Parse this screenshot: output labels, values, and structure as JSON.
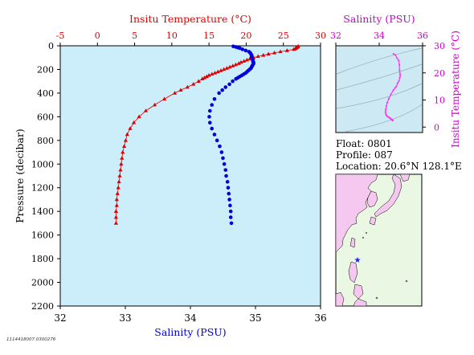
{
  "info": {
    "float_label": "Float:",
    "float_value": "0801",
    "profile_label": "Profile:",
    "profile_value": "087",
    "location_label": "Location:",
    "location_value": "20.6°N  128.1°E"
  },
  "footer": "1114418007.0300276",
  "colors": {
    "temperature": "#e00000",
    "salinity": "#0000dd",
    "ts_curve": "#ff33ff",
    "plot_bg": "#cbeefa",
    "ts_bg": "#cde9f3",
    "land": "#f5c8f0",
    "sea": "#eaf8e3",
    "float_marker": "#1a1aff"
  },
  "chart_data": [
    {
      "type": "scatter",
      "name": "profile",
      "top_axis": {
        "label": "Insitu Temperature (°C)",
        "range": [
          -5,
          30
        ],
        "ticks": [
          -5,
          0,
          5,
          10,
          15,
          20,
          25,
          30
        ]
      },
      "bottom_axis": {
        "label": "Salinity (PSU)",
        "range": [
          32,
          36
        ],
        "ticks": [
          32,
          33,
          34,
          35,
          36
        ]
      },
      "left_axis": {
        "label": "Pressure (decibar)",
        "range": [
          0,
          2200
        ],
        "inverted": true,
        "ticks": [
          0,
          200,
          400,
          600,
          800,
          1000,
          1200,
          1400,
          1600,
          1800,
          2000,
          2200
        ]
      },
      "grid": false,
      "series": [
        {
          "key": "temperature",
          "marker": "triangle",
          "axis": "top",
          "points": [
            [
              27.0,
              5
            ],
            [
              26.9,
              10
            ],
            [
              26.8,
              15
            ],
            [
              26.7,
              20
            ],
            [
              26.6,
              25
            ],
            [
              26.4,
              30
            ],
            [
              25.5,
              40
            ],
            [
              24.6,
              50
            ],
            [
              23.8,
              60
            ],
            [
              23.0,
              70
            ],
            [
              22.3,
              80
            ],
            [
              21.6,
              90
            ],
            [
              21.0,
              100
            ],
            [
              20.5,
              110
            ],
            [
              20.1,
              120
            ],
            [
              19.7,
              130
            ],
            [
              19.3,
              140
            ],
            [
              19.0,
              150
            ],
            [
              18.6,
              160
            ],
            [
              18.2,
              170
            ],
            [
              17.8,
              180
            ],
            [
              17.4,
              190
            ],
            [
              17.0,
              200
            ],
            [
              16.6,
              210
            ],
            [
              16.2,
              220
            ],
            [
              15.8,
              230
            ],
            [
              15.4,
              240
            ],
            [
              15.0,
              250
            ],
            [
              14.7,
              260
            ],
            [
              14.4,
              270
            ],
            [
              14.1,
              280
            ],
            [
              13.6,
              300
            ],
            [
              12.9,
              325
            ],
            [
              12.1,
              350
            ],
            [
              11.2,
              375
            ],
            [
              10.4,
              400
            ],
            [
              9.0,
              450
            ],
            [
              7.7,
              500
            ],
            [
              6.5,
              550
            ],
            [
              5.6,
              600
            ],
            [
              4.9,
              650
            ],
            [
              4.4,
              700
            ],
            [
              4.0,
              750
            ],
            [
              3.8,
              800
            ],
            [
              3.6,
              850
            ],
            [
              3.4,
              900
            ],
            [
              3.3,
              950
            ],
            [
              3.2,
              1000
            ],
            [
              3.1,
              1050
            ],
            [
              3.0,
              1100
            ],
            [
              2.9,
              1150
            ],
            [
              2.8,
              1200
            ],
            [
              2.7,
              1250
            ],
            [
              2.6,
              1300
            ],
            [
              2.6,
              1350
            ],
            [
              2.5,
              1400
            ],
            [
              2.5,
              1450
            ],
            [
              2.5,
              1500
            ]
          ]
        },
        {
          "key": "salinity",
          "marker": "circle",
          "axis": "bottom",
          "points": [
            [
              34.66,
              5
            ],
            [
              34.7,
              10
            ],
            [
              34.73,
              15
            ],
            [
              34.76,
              20
            ],
            [
              34.8,
              30
            ],
            [
              34.85,
              40
            ],
            [
              34.9,
              50
            ],
            [
              34.92,
              60
            ],
            [
              34.93,
              70
            ],
            [
              34.94,
              80
            ],
            [
              34.94,
              90
            ],
            [
              34.94,
              100
            ],
            [
              34.95,
              110
            ],
            [
              34.96,
              120
            ],
            [
              34.96,
              130
            ],
            [
              34.97,
              140
            ],
            [
              34.97,
              150
            ],
            [
              34.96,
              160
            ],
            [
              34.95,
              170
            ],
            [
              34.94,
              180
            ],
            [
              34.93,
              190
            ],
            [
              34.91,
              200
            ],
            [
              34.89,
              210
            ],
            [
              34.87,
              220
            ],
            [
              34.85,
              230
            ],
            [
              34.82,
              240
            ],
            [
              34.79,
              250
            ],
            [
              34.76,
              260
            ],
            [
              34.73,
              270
            ],
            [
              34.7,
              280
            ],
            [
              34.65,
              300
            ],
            [
              34.6,
              325
            ],
            [
              34.54,
              350
            ],
            [
              34.49,
              375
            ],
            [
              34.44,
              400
            ],
            [
              34.37,
              450
            ],
            [
              34.33,
              500
            ],
            [
              34.3,
              550
            ],
            [
              34.29,
              600
            ],
            [
              34.3,
              650
            ],
            [
              34.33,
              700
            ],
            [
              34.37,
              750
            ],
            [
              34.41,
              800
            ],
            [
              34.45,
              850
            ],
            [
              34.48,
              900
            ],
            [
              34.5,
              950
            ],
            [
              34.52,
              1000
            ],
            [
              34.54,
              1050
            ],
            [
              34.55,
              1100
            ],
            [
              34.57,
              1150
            ],
            [
              34.58,
              1200
            ],
            [
              34.59,
              1250
            ],
            [
              34.6,
              1300
            ],
            [
              34.61,
              1350
            ],
            [
              34.62,
              1400
            ],
            [
              34.62,
              1450
            ],
            [
              34.63,
              1500
            ]
          ]
        }
      ]
    },
    {
      "type": "scatter",
      "name": "ts-diagram",
      "top_axis": {
        "label": "Salinity (PSU)",
        "range": [
          32,
          36
        ],
        "ticks": [
          32,
          34,
          36
        ]
      },
      "right_axis": {
        "label": "Insitu Temperature (°C)",
        "range": [
          -2,
          30
        ],
        "ticks": [
          0,
          10,
          20,
          30
        ]
      },
      "grid": false,
      "series": [
        {
          "key": "ts",
          "marker": "dot",
          "points": [
            [
              34.66,
              27.0
            ],
            [
              34.75,
              26.6
            ],
            [
              34.82,
              25.5
            ],
            [
              34.9,
              24.6
            ],
            [
              34.93,
              23.0
            ],
            [
              34.94,
              21.0
            ],
            [
              34.96,
              19.7
            ],
            [
              34.97,
              19.0
            ],
            [
              34.95,
              18.2
            ],
            [
              34.91,
              17.0
            ],
            [
              34.85,
              16.2
            ],
            [
              34.79,
              15.0
            ],
            [
              34.73,
              14.4
            ],
            [
              34.65,
              13.6
            ],
            [
              34.54,
              12.1
            ],
            [
              34.44,
              10.4
            ],
            [
              34.37,
              9.0
            ],
            [
              34.33,
              7.7
            ],
            [
              34.3,
              6.5
            ],
            [
              34.29,
              5.6
            ],
            [
              34.3,
              4.9
            ],
            [
              34.33,
              4.4
            ],
            [
              34.37,
              4.0
            ],
            [
              34.41,
              3.8
            ],
            [
              34.45,
              3.6
            ],
            [
              34.48,
              3.4
            ],
            [
              34.52,
              3.2
            ],
            [
              34.55,
              3.0
            ],
            [
              34.58,
              2.8
            ],
            [
              34.6,
              2.6
            ],
            [
              34.62,
              2.5
            ],
            [
              34.63,
              2.5
            ]
          ]
        }
      ]
    }
  ]
}
